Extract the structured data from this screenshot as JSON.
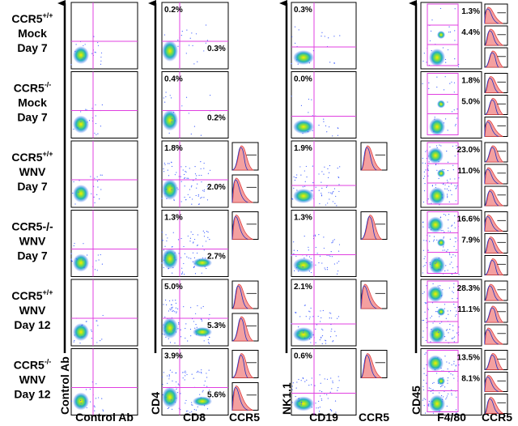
{
  "row_labels": [
    [
      {
        "text": "CCR5",
        "sup": "+/+"
      },
      {
        "text": "Mock"
      },
      {
        "text": "Day 7"
      }
    ],
    [
      {
        "text": "CCR5",
        "sup": "-/-"
      },
      {
        "text": "Mock"
      },
      {
        "text": "Day 7"
      }
    ],
    [
      {
        "text": "CCR5",
        "sup": "+/+"
      },
      {
        "text": "WNV"
      },
      {
        "text": "Day 7"
      }
    ],
    [
      {
        "text": "CCR5-/-"
      },
      {
        "text": "WNV"
      },
      {
        "text": "Day 7"
      }
    ],
    [
      {
        "text": "CCR5",
        "sup": "+/+"
      },
      {
        "text": "WNV"
      },
      {
        "text": "Day 12"
      }
    ],
    [
      {
        "text": "CCR5",
        "sup": "-/-"
      },
      {
        "text": "WNV"
      },
      {
        "text": "Day 12"
      }
    ]
  ],
  "y_axis_labels": [
    "Control Ab",
    "CD4",
    "NK1.1",
    "CD45"
  ],
  "x_axis_labels": [
    "Control Ab",
    "CD8",
    "CCR5",
    "CD19",
    "CCR5",
    "F4/80",
    "CCR5"
  ],
  "cd4_cd8": [
    {
      "upper": "0.2%",
      "lower": "0.3%"
    },
    {
      "upper": "0.4%",
      "lower": "0.2%"
    },
    {
      "upper": "1.8%",
      "lower": "2.0%"
    },
    {
      "upper": "1.3%",
      "lower": "2.7%"
    },
    {
      "upper": "5.0%",
      "lower": "5.3%"
    },
    {
      "upper": "3.9%",
      "lower": "5.6%"
    }
  ],
  "nk_cd19": [
    "0.3%",
    "0.0%",
    "1.9%",
    "1.3%",
    "2.1%",
    "0.6%"
  ],
  "cd45_f480": [
    {
      "upper": "1.3%",
      "lower": "4.4%"
    },
    {
      "upper": "1.8%",
      "lower": "5.0%"
    },
    {
      "upper": "23.0%",
      "lower": "11.0%"
    },
    {
      "upper": "16.6%",
      "lower": "7.9%"
    },
    {
      "upper": "28.3%",
      "lower": "11.1%"
    },
    {
      "upper": "13.5%",
      "lower": "8.1%"
    }
  ]
}
